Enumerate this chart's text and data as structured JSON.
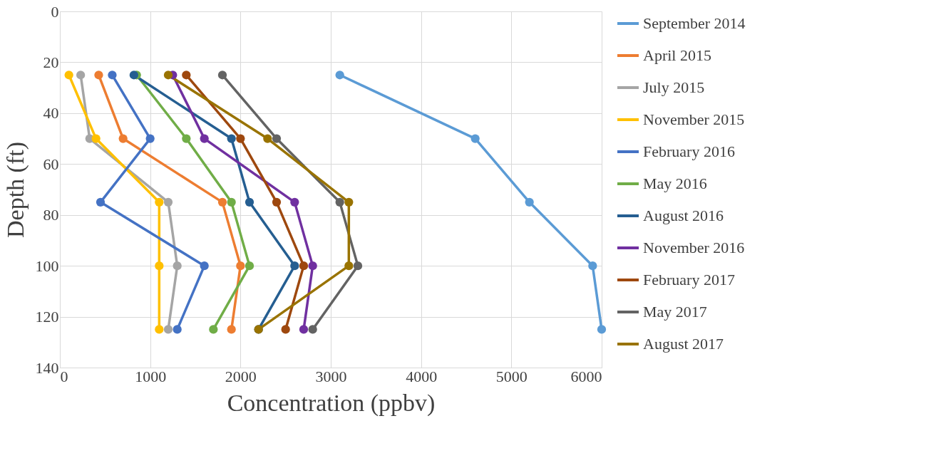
{
  "chart_data": {
    "type": "line",
    "xlabel": "Concentration (ppbv)",
    "ylabel": "Depth (ft)",
    "xlim": [
      0,
      6000
    ],
    "xticks": [
      0,
      1000,
      2000,
      3000,
      4000,
      5000,
      6000
    ],
    "ylim": [
      140,
      0
    ],
    "yticks": [
      0,
      20,
      40,
      60,
      80,
      100,
      120,
      140
    ],
    "grid": true,
    "legend": "right",
    "marker": "circle",
    "line_style": "solid",
    "series": [
      {
        "name": "September 2014",
        "color": "#5b9bd5",
        "x": [
          3100,
          4600,
          5200,
          5900,
          6000
        ],
        "values": [
          25,
          50,
          75,
          100,
          125
        ]
      },
      {
        "name": "April 2015",
        "color": "#ed7d31",
        "x": [
          430,
          700,
          1800,
          2000,
          1900
        ],
        "values": [
          25,
          50,
          75,
          100,
          125
        ]
      },
      {
        "name": "July 2015",
        "color": "#a5a5a5",
        "x": [
          230,
          330,
          1200,
          1300,
          1200
        ],
        "values": [
          25,
          50,
          75,
          100,
          125
        ]
      },
      {
        "name": "November 2015",
        "color": "#ffc000",
        "x": [
          100,
          400,
          1100,
          1100,
          1100
        ],
        "values": [
          25,
          50,
          75,
          100,
          125
        ]
      },
      {
        "name": "February 2016",
        "color": "#4472c4",
        "x": [
          580,
          1000,
          450,
          1600,
          1300
        ],
        "values": [
          25,
          50,
          75,
          100,
          125
        ]
      },
      {
        "name": "May 2016",
        "color": "#70ad47",
        "x": [
          850,
          1400,
          1900,
          2100,
          1700
        ],
        "values": [
          25,
          50,
          75,
          100,
          125
        ]
      },
      {
        "name": "August 2016",
        "color": "#255e91",
        "x": [
          820,
          1900,
          2100,
          2600,
          2200
        ],
        "values": [
          25,
          50,
          75,
          100,
          125
        ]
      },
      {
        "name": "November 2016",
        "color": "#7030a0",
        "x": [
          1250,
          1600,
          2600,
          2800,
          2700
        ],
        "values": [
          25,
          50,
          75,
          100,
          125
        ]
      },
      {
        "name": "February 2017",
        "color": "#9e480e",
        "x": [
          1400,
          2000,
          2400,
          2700,
          2500
        ],
        "values": [
          25,
          50,
          75,
          100,
          125
        ]
      },
      {
        "name": "May 2017",
        "color": "#636363",
        "x": [
          1800,
          2400,
          3100,
          3300,
          2800
        ],
        "values": [
          25,
          50,
          75,
          100,
          125
        ]
      },
      {
        "name": "August 2017",
        "color": "#997300",
        "x": [
          1200,
          2300,
          3200,
          3200,
          2200
        ],
        "values": [
          25,
          50,
          75,
          100,
          125
        ]
      }
    ]
  }
}
